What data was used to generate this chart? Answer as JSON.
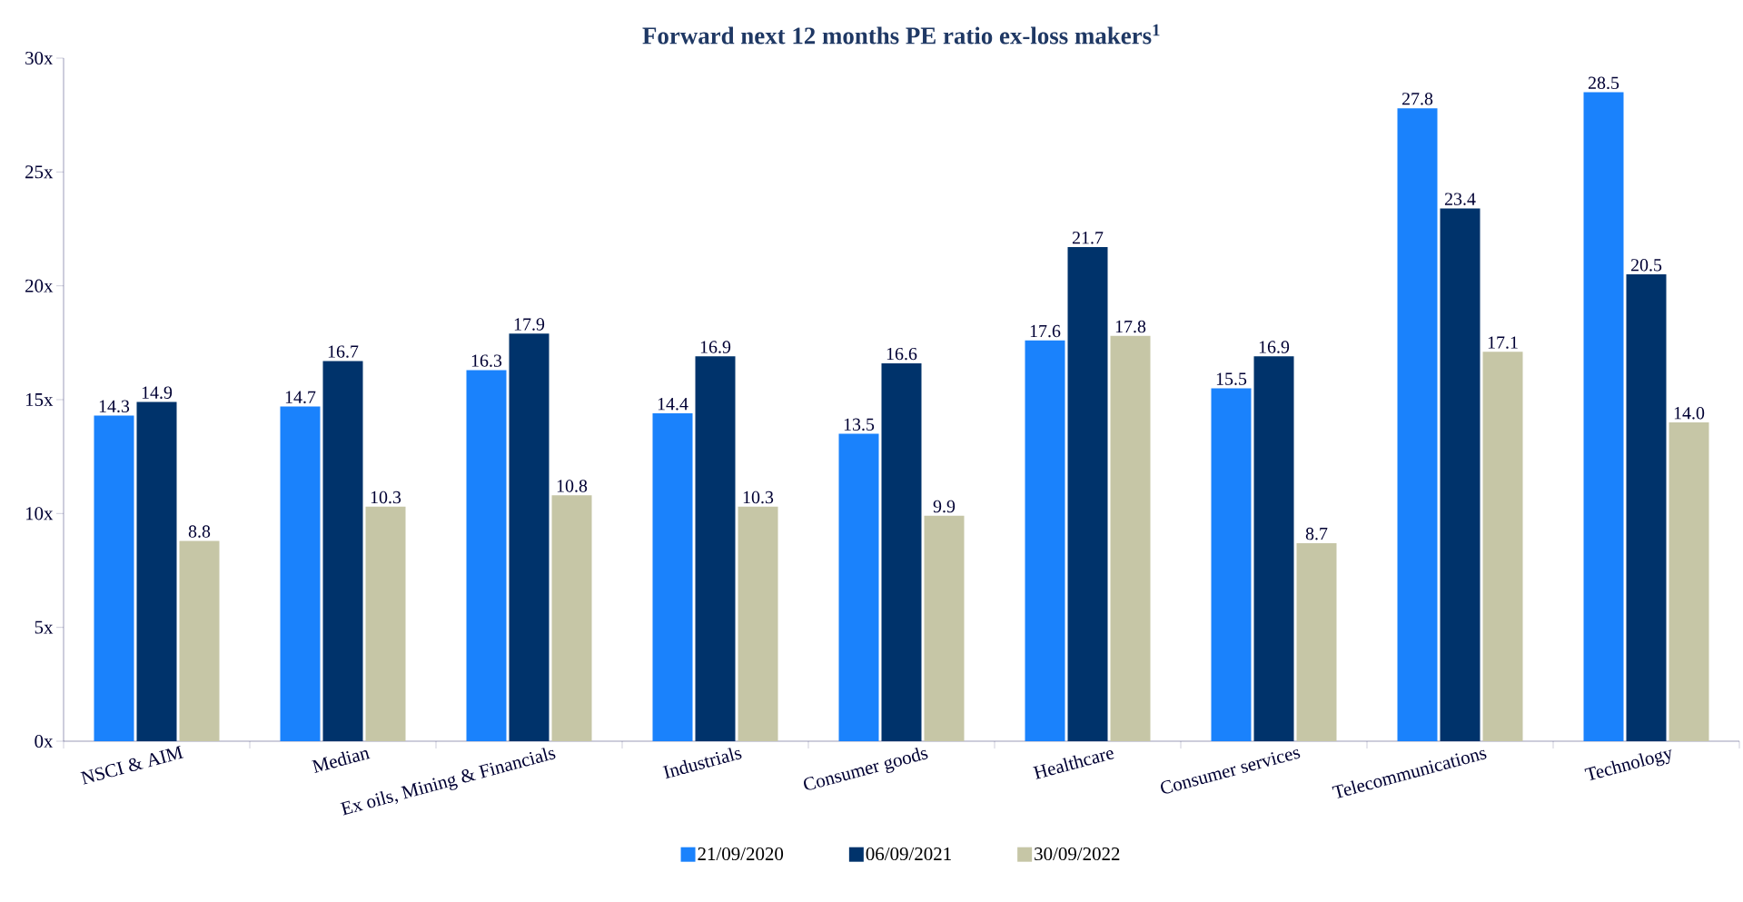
{
  "chart_data": {
    "type": "bar",
    "title": "Forward next 12 months PE ratio ex-loss makers$^{1}$",
    "categories": [
      "NSCI & AIM",
      "Median",
      "Ex oils, Mining & Financials",
      "Industrials",
      "Consumer goods",
      "Healthcare",
      "Consumer services",
      "Telecommunications",
      "Technology"
    ],
    "series": [
      {
        "name": "21/09/2020",
        "color": "#1a82fc",
        "values": [
          14.3,
          14.7,
          16.3,
          14.4,
          13.5,
          17.6,
          15.5,
          27.8,
          28.5
        ],
        "value_labels": [
          "14.3",
          "14.7",
          "16.3",
          "14.4",
          "13.5",
          "17.6",
          "15.5",
          "27.8",
          "28.5"
        ]
      },
      {
        "name": "06/09/2021",
        "color": "#00336b",
        "values": [
          14.9,
          16.7,
          17.9,
          16.9,
          16.6,
          21.7,
          16.9,
          23.4,
          20.5
        ],
        "value_labels": [
          "14.9",
          "16.7",
          "17.9",
          "16.9",
          "16.6",
          "21.7",
          "16.9",
          "23.4",
          "20.5"
        ]
      },
      {
        "name": "30/09/2022",
        "color": "#c6c6a6",
        "values": [
          8.8,
          10.3,
          10.8,
          10.3,
          9.9,
          17.8,
          8.7,
          17.1,
          14.0
        ],
        "value_labels": [
          "8.8",
          "10.3",
          "10.8",
          "10.3",
          "9.9",
          "17.8",
          "8.7",
          "17.1",
          "14.0"
        ]
      }
    ],
    "ylim": [
      0,
      30
    ],
    "yticks": [
      {
        "value": 0,
        "label": "0x"
      },
      {
        "value": 5,
        "label": "5x"
      },
      {
        "value": 10,
        "label": "10x"
      },
      {
        "value": 15,
        "label": "15x"
      },
      {
        "value": 20,
        "label": "20x"
      },
      {
        "value": 25,
        "label": "25x"
      },
      {
        "value": 30,
        "label": "30x"
      }
    ],
    "legend": "bottom",
    "grid": false
  }
}
